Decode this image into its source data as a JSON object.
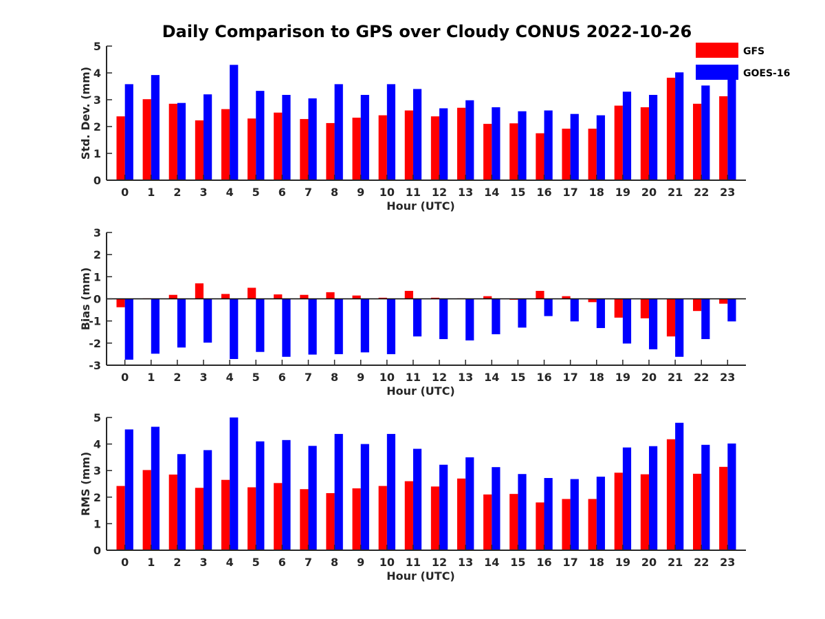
{
  "title": "Daily Comparison to GPS over Cloudy CONUS 2022-10-26",
  "legend": [
    {
      "name": "GFS",
      "color": "#ff0000"
    },
    {
      "name": "GOES-16",
      "color": "#0000ff"
    }
  ],
  "chart_data": [
    {
      "type": "bar",
      "xlabel": "Hour (UTC)",
      "ylabel": "Std. Dev. (mm)",
      "ylim": [
        0,
        5
      ],
      "yticks": [
        0,
        1,
        2,
        3,
        4,
        5
      ],
      "categories": [
        "0",
        "1",
        "2",
        "3",
        "4",
        "5",
        "6",
        "7",
        "8",
        "9",
        "10",
        "11",
        "12",
        "13",
        "14",
        "15",
        "16",
        "17",
        "18",
        "19",
        "20",
        "21",
        "22",
        "23"
      ],
      "series": [
        {
          "name": "GFS",
          "color": "#ff0000",
          "values": [
            2.38,
            3.02,
            2.85,
            2.23,
            2.65,
            2.3,
            2.52,
            2.28,
            2.13,
            2.33,
            2.42,
            2.6,
            2.38,
            2.7,
            2.1,
            2.12,
            1.75,
            1.92,
            1.92,
            2.78,
            2.72,
            3.82,
            2.85,
            3.13
          ]
        },
        {
          "name": "GOES-16",
          "color": "#0000ff",
          "values": [
            3.58,
            3.92,
            2.88,
            3.2,
            4.3,
            3.33,
            3.18,
            3.05,
            3.58,
            3.18,
            3.58,
            3.4,
            2.68,
            2.98,
            2.72,
            2.57,
            2.6,
            2.47,
            2.42,
            3.3,
            3.18,
            4.02,
            3.53,
            3.92
          ]
        }
      ]
    },
    {
      "type": "bar",
      "xlabel": "Hour (UTC)",
      "ylabel": "Bias (mm)",
      "ylim": [
        -3,
        3
      ],
      "yticks": [
        -3,
        -2,
        -1,
        0,
        1,
        2,
        3
      ],
      "categories": [
        "0",
        "1",
        "2",
        "3",
        "4",
        "5",
        "6",
        "7",
        "8",
        "9",
        "10",
        "11",
        "12",
        "13",
        "14",
        "15",
        "16",
        "17",
        "18",
        "19",
        "20",
        "21",
        "22",
        "23"
      ],
      "series": [
        {
          "name": "GFS",
          "color": "#ff0000",
          "values": [
            -0.38,
            0.02,
            0.18,
            0.7,
            0.22,
            0.5,
            0.2,
            0.18,
            0.3,
            0.15,
            0.05,
            0.36,
            0.05,
            0.02,
            0.12,
            -0.04,
            0.36,
            0.12,
            -0.15,
            -0.85,
            -0.88,
            -1.7,
            -0.55,
            -0.22
          ]
        },
        {
          "name": "GOES-16",
          "color": "#0000ff",
          "values": [
            -2.75,
            -2.48,
            -2.2,
            -1.98,
            -2.72,
            -2.4,
            -2.62,
            -2.52,
            -2.5,
            -2.42,
            -2.5,
            -1.7,
            -1.82,
            -1.88,
            -1.6,
            -1.3,
            -0.78,
            -1.02,
            -1.32,
            -2.02,
            -2.28,
            -2.62,
            -1.82,
            -1.02
          ]
        }
      ]
    },
    {
      "type": "bar",
      "xlabel": "Hour (UTC)",
      "ylabel": "RMS (mm)",
      "ylim": [
        0,
        5
      ],
      "yticks": [
        0,
        1,
        2,
        3,
        4,
        5
      ],
      "categories": [
        "0",
        "1",
        "2",
        "3",
        "4",
        "5",
        "6",
        "7",
        "8",
        "9",
        "10",
        "11",
        "12",
        "13",
        "14",
        "15",
        "16",
        "17",
        "18",
        "19",
        "20",
        "21",
        "22",
        "23"
      ],
      "series": [
        {
          "name": "GFS",
          "color": "#ff0000",
          "values": [
            2.42,
            3.02,
            2.85,
            2.35,
            2.65,
            2.37,
            2.53,
            2.3,
            2.15,
            2.33,
            2.42,
            2.6,
            2.4,
            2.7,
            2.1,
            2.12,
            1.8,
            1.93,
            1.93,
            2.92,
            2.86,
            4.18,
            2.88,
            3.14
          ]
        },
        {
          "name": "GOES-16",
          "color": "#0000ff",
          "values": [
            4.55,
            4.65,
            3.62,
            3.77,
            5.0,
            4.1,
            4.15,
            3.93,
            4.38,
            4.0,
            4.38,
            3.82,
            3.22,
            3.5,
            3.13,
            2.87,
            2.72,
            2.68,
            2.77,
            3.87,
            3.92,
            4.8,
            3.97,
            4.02
          ]
        }
      ]
    }
  ]
}
